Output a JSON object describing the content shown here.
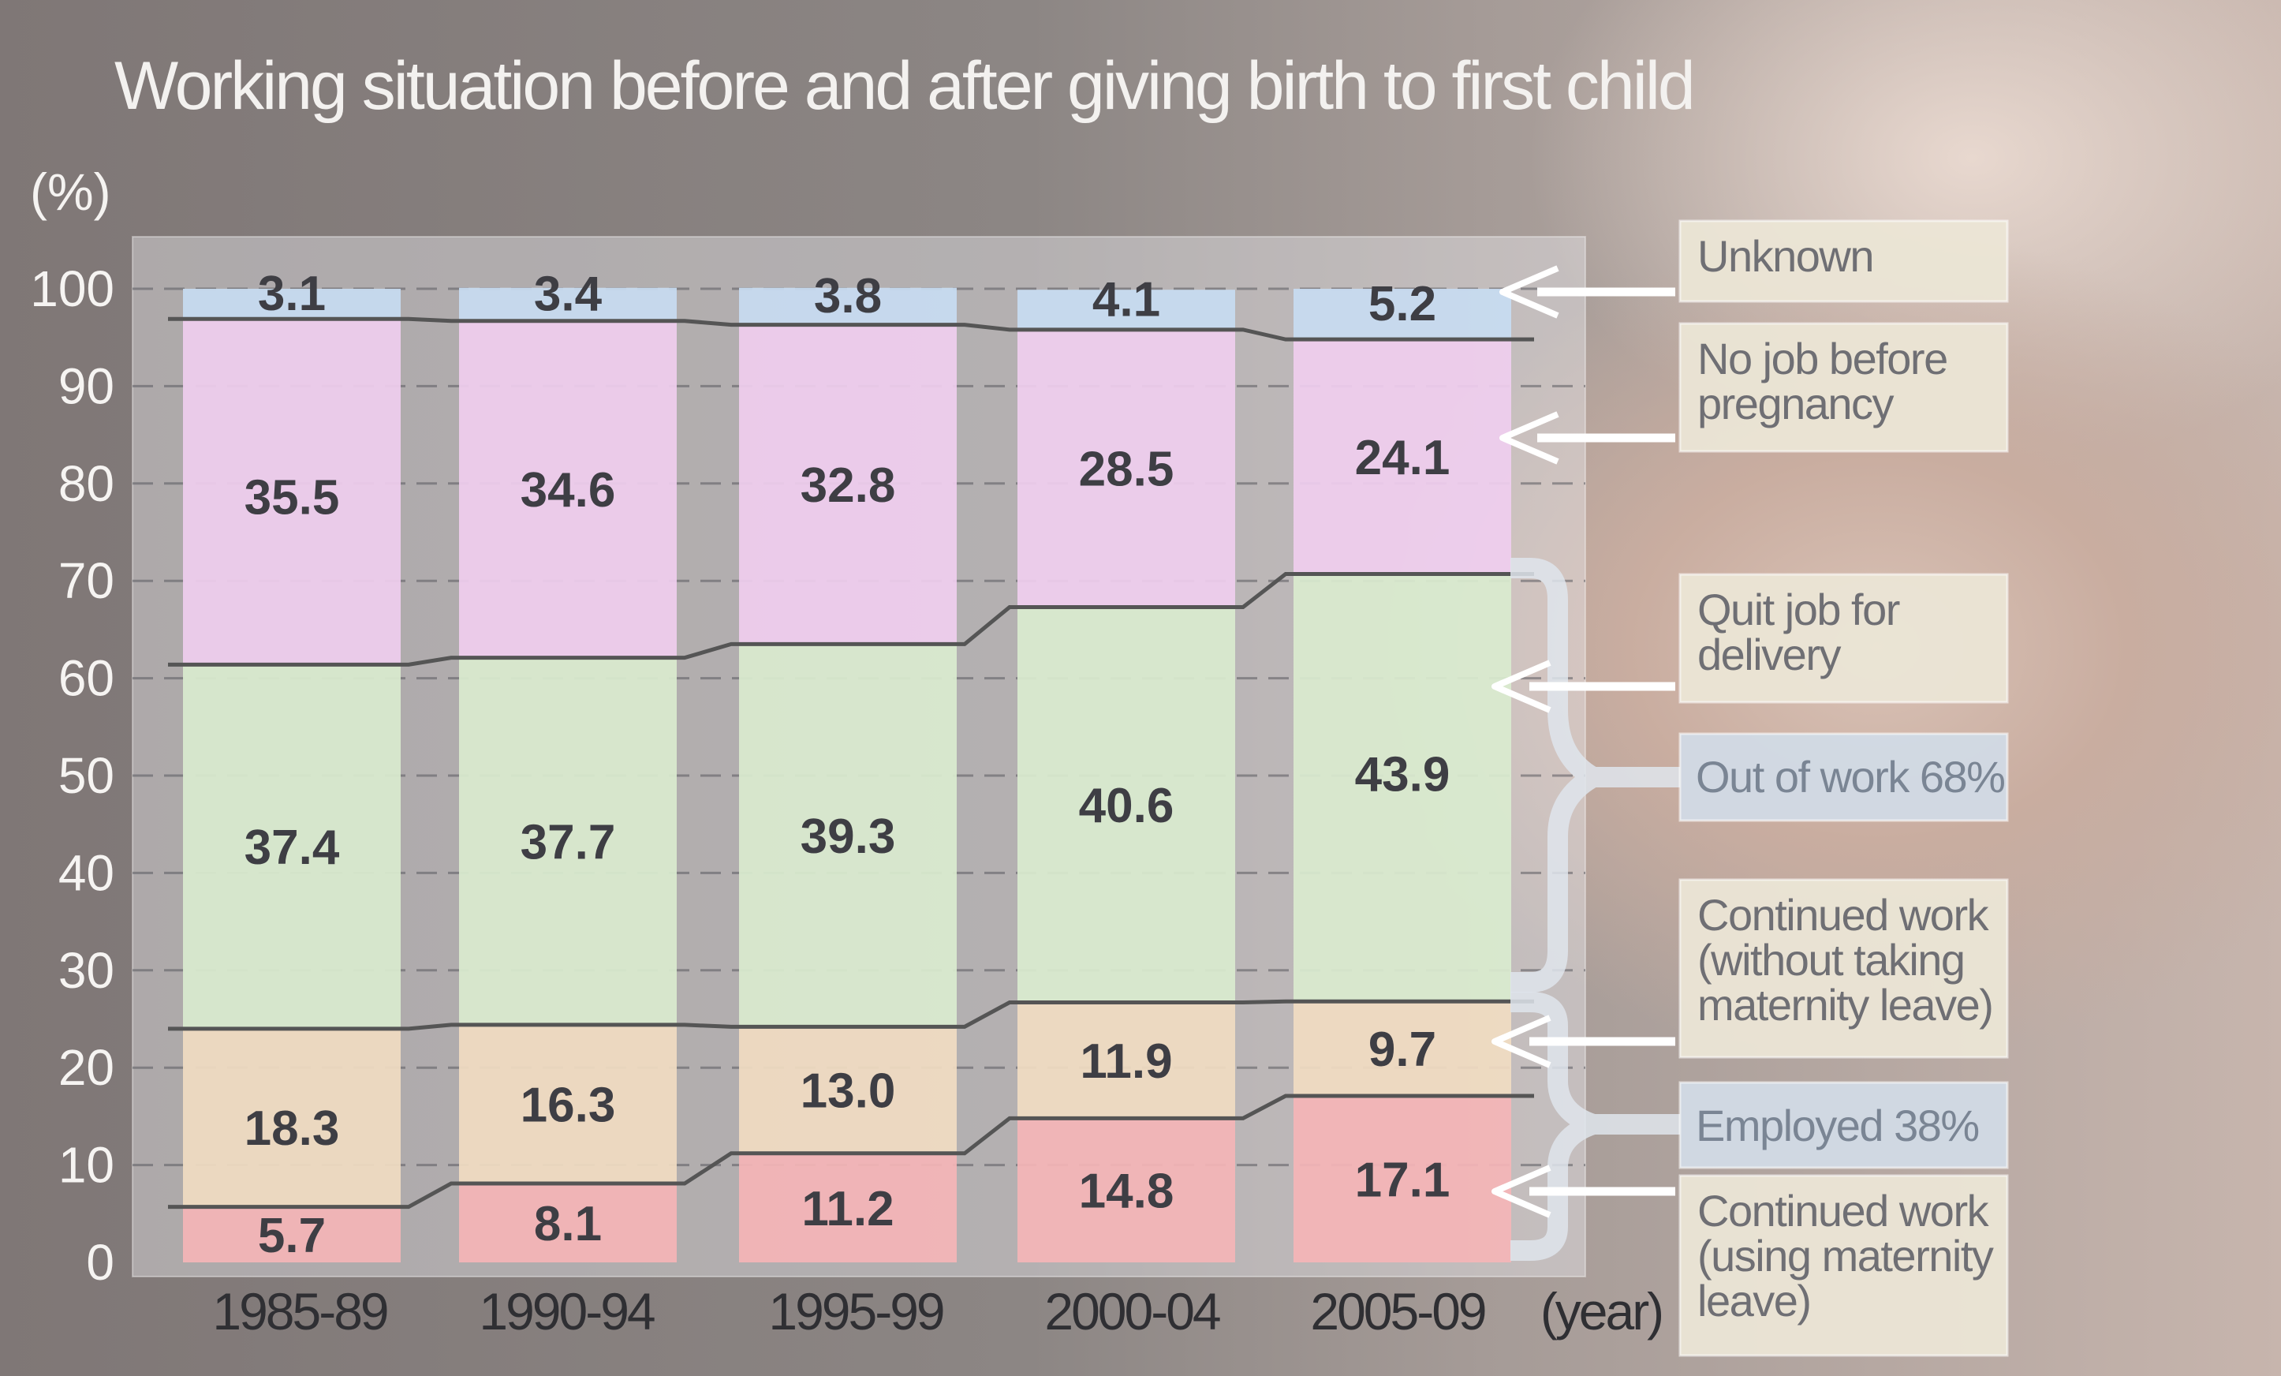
{
  "chart_data": {
    "type": "bar",
    "stacked": true,
    "title": "Working situation before and after giving birth to first child",
    "ylabel": "(%)",
    "xlabel": "(year)",
    "ylim": [
      0,
      100
    ],
    "yticks": [
      0,
      10,
      20,
      30,
      40,
      50,
      60,
      70,
      80,
      90,
      100
    ],
    "grid": true,
    "categories": [
      "1985-89",
      "1990-94",
      "1995-99",
      "2000-04",
      "2005-09"
    ],
    "series": [
      {
        "name": "Continued work (using maternity leave)",
        "color": "#f4b5b7",
        "values": [
          5.7,
          8.1,
          11.2,
          14.8,
          17.1
        ]
      },
      {
        "name": "Continued work (without taking maternity leave)",
        "color": "#f0dcc2",
        "values": [
          18.3,
          16.3,
          13.0,
          11.9,
          9.7
        ]
      },
      {
        "name": "Quit job for delivery",
        "color": "#d9ebcf",
        "values": [
          37.4,
          37.7,
          39.3,
          40.6,
          43.9
        ]
      },
      {
        "name": "No job before pregnancy",
        "color": "#efcdee",
        "values": [
          35.5,
          34.6,
          32.8,
          28.5,
          24.1
        ]
      },
      {
        "name": "Unknown",
        "color": "#c7dbf1",
        "values": [
          3.1,
          3.4,
          3.8,
          4.1,
          5.2
        ]
      }
    ],
    "legend": [
      {
        "label": "Unknown",
        "series": 4
      },
      {
        "label": "No job before pregnancy",
        "series": 3
      },
      {
        "label": "Quit job for delivery",
        "series": 2
      },
      {
        "label": "Continued work (without taking maternity leave)",
        "series": 1
      },
      {
        "label": "Continued work (using maternity leave)",
        "series": 0
      }
    ],
    "group_labels": [
      {
        "label": "Out of work 68%"
      },
      {
        "label": "Employed 38%"
      }
    ],
    "colors": {
      "legend_box": "#ece6d6",
      "group_box": "#d2dbe6",
      "bracket": "#dfe5ec",
      "line": "#555555",
      "value_text": "#3e3e44",
      "tick_text": "#f6f4f2"
    }
  }
}
